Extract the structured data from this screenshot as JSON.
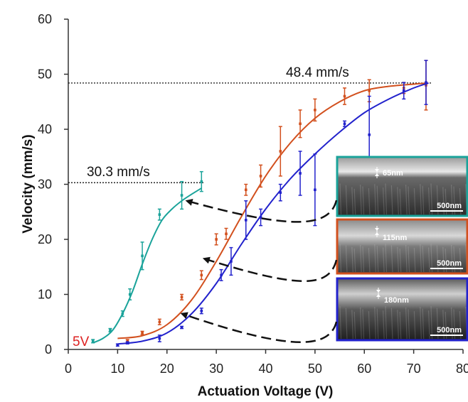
{
  "chart_data": {
    "type": "line",
    "title": "",
    "xlabel": "Actuation Voltage (V)",
    "ylabel": "Velocity (mm/s)",
    "xlim": [
      0,
      80
    ],
    "ylim": [
      0,
      60
    ],
    "xticks": [
      0,
      10,
      20,
      30,
      40,
      50,
      60,
      70,
      80
    ],
    "yticks": [
      0,
      10,
      20,
      30,
      40,
      50,
      60
    ],
    "grid": false,
    "series": [
      {
        "color": "#1aa39a",
        "x": [
          5,
          7,
          9,
          11,
          13,
          15,
          17,
          19,
          21,
          23,
          25,
          27
        ],
        "y": [
          1.2,
          2.0,
          3.5,
          6.5,
          10.5,
          15.5,
          20.0,
          23.5,
          25.5,
          27.0,
          28.2,
          29.3
        ],
        "points": [
          {
            "x": 5,
            "y": 1.5,
            "err": 0.3
          },
          {
            "x": 8.5,
            "y": 3.5,
            "err": 0.3
          },
          {
            "x": 11,
            "y": 6.5,
            "err": 0.5
          },
          {
            "x": 12.5,
            "y": 10.0,
            "err": 1.0
          },
          {
            "x": 15,
            "y": 17.0,
            "err": 2.5
          },
          {
            "x": 18.5,
            "y": 24.5,
            "err": 1.0
          },
          {
            "x": 23,
            "y": 28.0,
            "err": 2.5
          },
          {
            "x": 27,
            "y": 30.5,
            "err": 1.8
          }
        ]
      },
      {
        "color": "#d2501e",
        "x": [
          10,
          15,
          20,
          25,
          30,
          35,
          40,
          45,
          50,
          55,
          60,
          65,
          70,
          73
        ],
        "y": [
          2.0,
          2.5,
          4.5,
          9.0,
          16.0,
          24.0,
          31.5,
          37.5,
          42.0,
          45.0,
          47.0,
          47.8,
          48.2,
          48.4
        ],
        "points": [
          {
            "x": 12,
            "y": 1.5,
            "err": 0.3
          },
          {
            "x": 15,
            "y": 3.0,
            "err": 0.3
          },
          {
            "x": 18.5,
            "y": 5.0,
            "err": 0.5
          },
          {
            "x": 23,
            "y": 9.5,
            "err": 0.5
          },
          {
            "x": 27,
            "y": 13.5,
            "err": 0.8
          },
          {
            "x": 30,
            "y": 20.0,
            "err": 1.0
          },
          {
            "x": 32,
            "y": 21.0,
            "err": 1.0
          },
          {
            "x": 36,
            "y": 29.0,
            "err": 1.0
          },
          {
            "x": 39,
            "y": 31.5,
            "err": 2.0
          },
          {
            "x": 43,
            "y": 36.0,
            "err": 4.5
          },
          {
            "x": 47,
            "y": 41.0,
            "err": 2.5
          },
          {
            "x": 50,
            "y": 43.5,
            "err": 2.0
          },
          {
            "x": 56,
            "y": 46.0,
            "err": 1.5
          },
          {
            "x": 61,
            "y": 47.0,
            "err": 2.0
          },
          {
            "x": 68,
            "y": 47.5,
            "err": 1.0
          },
          {
            "x": 72.5,
            "y": 48.0,
            "err": 4.5
          }
        ]
      },
      {
        "color": "#2222cc",
        "x": [
          10,
          15,
          20,
          25,
          30,
          35,
          40,
          45,
          50,
          55,
          60,
          65,
          70,
          73
        ],
        "y": [
          1.0,
          1.5,
          3.0,
          6.5,
          12.0,
          19.0,
          25.5,
          31.0,
          35.5,
          39.5,
          43.0,
          45.5,
          47.5,
          48.4
        ],
        "points": [
          {
            "x": 10,
            "y": 0.8,
            "err": 0.2
          },
          {
            "x": 12,
            "y": 1.2,
            "err": 0.2
          },
          {
            "x": 18.5,
            "y": 2.0,
            "err": 0.6
          },
          {
            "x": 23,
            "y": 4.0,
            "err": 0.2
          },
          {
            "x": 27,
            "y": 7.0,
            "err": 0.5
          },
          {
            "x": 31,
            "y": 13.5,
            "err": 1.0
          },
          {
            "x": 33,
            "y": 16.0,
            "err": 2.5
          },
          {
            "x": 36,
            "y": 23.5,
            "err": 3.5
          },
          {
            "x": 39,
            "y": 24.0,
            "err": 1.5
          },
          {
            "x": 43,
            "y": 28.5,
            "err": 1.5
          },
          {
            "x": 47,
            "y": 32.0,
            "err": 4.0
          },
          {
            "x": 50,
            "y": 29.0,
            "err": 6.5
          },
          {
            "x": 56,
            "y": 41.0,
            "err": 0.5
          },
          {
            "x": 61,
            "y": 39.0,
            "err": 7.0
          },
          {
            "x": 68,
            "y": 47.0,
            "err": 1.5
          },
          {
            "x": 72.5,
            "y": 48.5,
            "err": 4.0
          }
        ]
      }
    ],
    "reference_lines": [
      {
        "y": 48.4,
        "x_start": 0,
        "x_end": 73,
        "label": "48.4 mm/s"
      },
      {
        "y": 30.3,
        "x_start": 0,
        "x_end": 27,
        "label": "30.3 mm/s"
      }
    ],
    "annotations": [
      {
        "text": "5V",
        "color": "#dd2222"
      }
    ],
    "insets": [
      {
        "border_color": "#1aa39a",
        "thickness_label": "65nm",
        "scale_label": "500nm",
        "arrow_target": {
          "x": 24,
          "y": 27
        }
      },
      {
        "border_color": "#d2501e",
        "thickness_label": "115nm",
        "scale_label": "500nm",
        "arrow_target": {
          "x": 27.5,
          "y": 16.5
        }
      },
      {
        "border_color": "#2222cc",
        "thickness_label": "180nm",
        "scale_label": "500nm",
        "arrow_target": {
          "x": 23,
          "y": 6.5
        }
      }
    ]
  }
}
